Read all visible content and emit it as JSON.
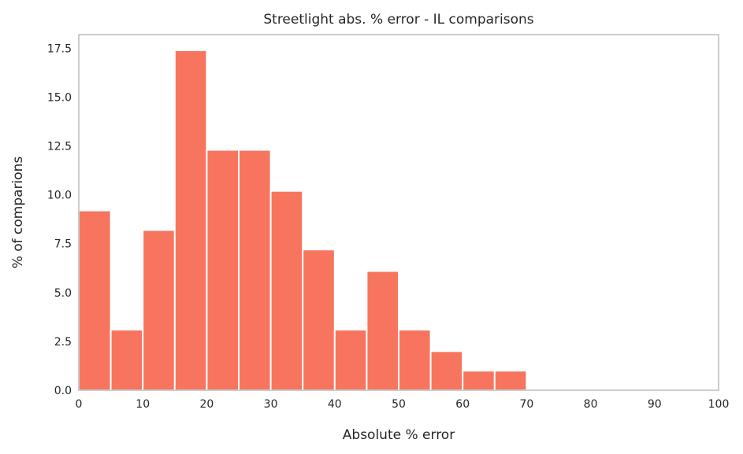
{
  "chart_data": {
    "type": "bar",
    "title": "Streetlight abs. % error - IL comparisons",
    "xlabel": "Absolute % error",
    "ylabel": "% of comparions",
    "xlim": [
      0,
      100
    ],
    "ylim": [
      0,
      18.2
    ],
    "xticks": [
      "0",
      "10",
      "20",
      "30",
      "40",
      "50",
      "60",
      "70",
      "80",
      "90",
      "100"
    ],
    "yticks": [
      "0.0",
      "2.5",
      "5.0",
      "7.5",
      "10.0",
      "12.5",
      "15.0",
      "17.5"
    ],
    "bin_width": 5,
    "bins": [
      {
        "start": 0,
        "end": 5,
        "value": 9.2
      },
      {
        "start": 5,
        "end": 10,
        "value": 3.1
      },
      {
        "start": 10,
        "end": 15,
        "value": 8.2
      },
      {
        "start": 15,
        "end": 20,
        "value": 17.4
      },
      {
        "start": 20,
        "end": 25,
        "value": 12.3
      },
      {
        "start": 25,
        "end": 30,
        "value": 12.3
      },
      {
        "start": 30,
        "end": 35,
        "value": 10.2
      },
      {
        "start": 35,
        "end": 40,
        "value": 7.2
      },
      {
        "start": 40,
        "end": 45,
        "value": 3.1
      },
      {
        "start": 45,
        "end": 50,
        "value": 6.1
      },
      {
        "start": 50,
        "end": 55,
        "value": 3.1
      },
      {
        "start": 55,
        "end": 60,
        "value": 2.0
      },
      {
        "start": 60,
        "end": 65,
        "value": 1.0
      },
      {
        "start": 65,
        "end": 70,
        "value": 1.0
      }
    ],
    "bar_color": "#f7745e",
    "frame_color": "#cccccc",
    "grid": false
  }
}
